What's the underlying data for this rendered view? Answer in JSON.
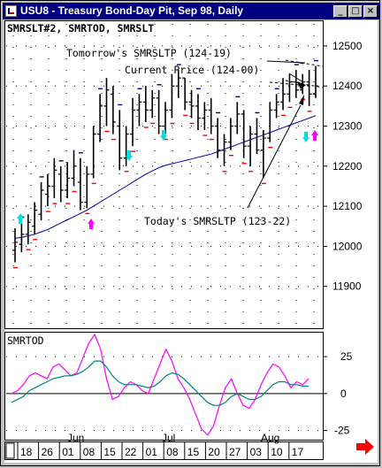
{
  "window": {
    "title": "USU8 - Treasury Bond-Day Pit, Sep 98, Daily",
    "buttons": [
      "_",
      "□",
      "×"
    ]
  },
  "price_panel": {
    "header": "SMRSLT#2, SMRTOD, SMRSLT",
    "annotations": {
      "tomorrow": "Tomorrow's SMRSLTP (124-19)",
      "current": "Current Price (124-00)",
      "today": "Today's SMRSLTP (123-22)"
    }
  },
  "osc_panel": {
    "header": "SMRTOD"
  },
  "colors": {
    "bar": "#000000",
    "ma": "#0000a0",
    "osc1": "#ff00ff",
    "osc2": "#008080",
    "up_arrow": "#ff00ff",
    "cyan_arrow": "#00e0e0",
    "dash": "#ff0000",
    "nav_arrow": "#ff0000"
  },
  "nav": {
    "scroll_right_icon": "right-arrow-icon"
  },
  "chart_data": [
    {
      "type": "ohlc",
      "title": "SMRSLT#2, SMRTOD, SMRSLT",
      "y_ticks": [
        12500,
        12400,
        12300,
        12200,
        12100,
        12000,
        11900
      ],
      "ylim": [
        11800,
        12555
      ],
      "months": [
        "Jun",
        "Jul",
        "Aug"
      ],
      "day_ticks": [
        "18",
        "26",
        "01",
        "08",
        "15",
        "22",
        "01",
        "08",
        "15",
        "20",
        "27",
        "03",
        "10",
        "17"
      ],
      "bars": [
        [
          11990,
          12045,
          11960,
          12010
        ],
        [
          12005,
          12060,
          11985,
          12030
        ],
        [
          12030,
          12080,
          12005,
          12060
        ],
        [
          12050,
          12110,
          12030,
          12090
        ],
        [
          12080,
          12160,
          12065,
          12140
        ],
        [
          12130,
          12180,
          12100,
          12150
        ],
        [
          12150,
          12220,
          12120,
          12190
        ],
        [
          12180,
          12200,
          12110,
          12140
        ],
        [
          12140,
          12210,
          12120,
          12170
        ],
        [
          12170,
          12240,
          12150,
          12200
        ],
        [
          12160,
          12220,
          12090,
          12110
        ],
        [
          12110,
          12200,
          12095,
          12180
        ],
        [
          12180,
          12300,
          12170,
          12280
        ],
        [
          12280,
          12380,
          12260,
          12350
        ],
        [
          12350,
          12420,
          12300,
          12390
        ],
        [
          12380,
          12400,
          12280,
          12310
        ],
        [
          12300,
          12340,
          12190,
          12220
        ],
        [
          12220,
          12300,
          12200,
          12280
        ],
        [
          12280,
          12370,
          12250,
          12340
        ],
        [
          12340,
          12380,
          12300,
          12360
        ],
        [
          12360,
          12400,
          12310,
          12340
        ],
        [
          12340,
          12390,
          12320,
          12370
        ],
        [
          12370,
          12390,
          12280,
          12300
        ],
        [
          12300,
          12360,
          12280,
          12340
        ],
        [
          12340,
          12430,
          12320,
          12400
        ],
        [
          12400,
          12440,
          12370,
          12420
        ],
        [
          12420,
          12420,
          12340,
          12360
        ],
        [
          12360,
          12390,
          12320,
          12350
        ],
        [
          12350,
          12380,
          12290,
          12320
        ],
        [
          12320,
          12360,
          12290,
          12340
        ],
        [
          12340,
          12370,
          12280,
          12300
        ],
        [
          12300,
          12320,
          12220,
          12240
        ],
        [
          12240,
          12280,
          12200,
          12260
        ],
        [
          12260,
          12320,
          12240,
          12300
        ],
        [
          12300,
          12360,
          12280,
          12330
        ],
        [
          12330,
          12340,
          12220,
          12250
        ],
        [
          12250,
          12300,
          12200,
          12280
        ],
        [
          12280,
          12320,
          12230,
          12240
        ],
        [
          12240,
          12290,
          12170,
          12270
        ],
        [
          12270,
          12360,
          12260,
          12340
        ],
        [
          12340,
          12380,
          12320,
          12360
        ],
        [
          12360,
          12420,
          12340,
          12380
        ],
        [
          12380,
          12430,
          12360,
          12410
        ],
        [
          12410,
          12440,
          12370,
          12390
        ],
        [
          12390,
          12430,
          12380,
          12410
        ],
        [
          12410,
          12440,
          12350,
          12380
        ],
        [
          12380,
          12450,
          12370,
          12400
        ]
      ],
      "moving_average": [
        12020,
        12022,
        12026,
        12030,
        12036,
        12042,
        12050,
        12058,
        12066,
        12074,
        12082,
        12090,
        12100,
        12110,
        12120,
        12130,
        12140,
        12150,
        12160,
        12170,
        12180,
        12188,
        12196,
        12202,
        12206,
        12210,
        12214,
        12218,
        12222,
        12226,
        12230,
        12236,
        12242,
        12248,
        12254,
        12260,
        12266,
        12272,
        12278,
        12284,
        12290,
        12296,
        12302,
        12308,
        12314,
        12320,
        12326
      ]
    },
    {
      "type": "line",
      "title": "SMRTOD",
      "y_ticks": [
        25,
        0,
        -25
      ],
      "ylim": [
        -30,
        40
      ],
      "series": [
        {
          "values": [
            0,
            2,
            6,
            12,
            14,
            12,
            10,
            18,
            20,
            16,
            12,
            14,
            24,
            34,
            40,
            30,
            10,
            -4,
            -2,
            4,
            8,
            6,
            2,
            0,
            10,
            20,
            30,
            22,
            10,
            4,
            -4,
            -14,
            -24,
            -28,
            -22,
            -8,
            4,
            10,
            0,
            -8,
            -10,
            -4,
            6,
            14,
            20,
            18,
            12,
            4,
            8,
            6,
            10
          ]
        },
        {
          "values": [
            -6,
            -4,
            -2,
            2,
            4,
            6,
            8,
            10,
            11,
            12,
            12,
            13,
            15,
            18,
            22,
            22,
            18,
            12,
            8,
            6,
            6,
            6,
            5,
            4,
            5,
            8,
            12,
            14,
            13,
            10,
            6,
            2,
            -2,
            -6,
            -8,
            -8,
            -6,
            -2,
            0,
            -2,
            -4,
            -4,
            -2,
            2,
            6,
            8,
            8,
            6,
            6,
            5,
            5
          ]
        }
      ]
    }
  ]
}
